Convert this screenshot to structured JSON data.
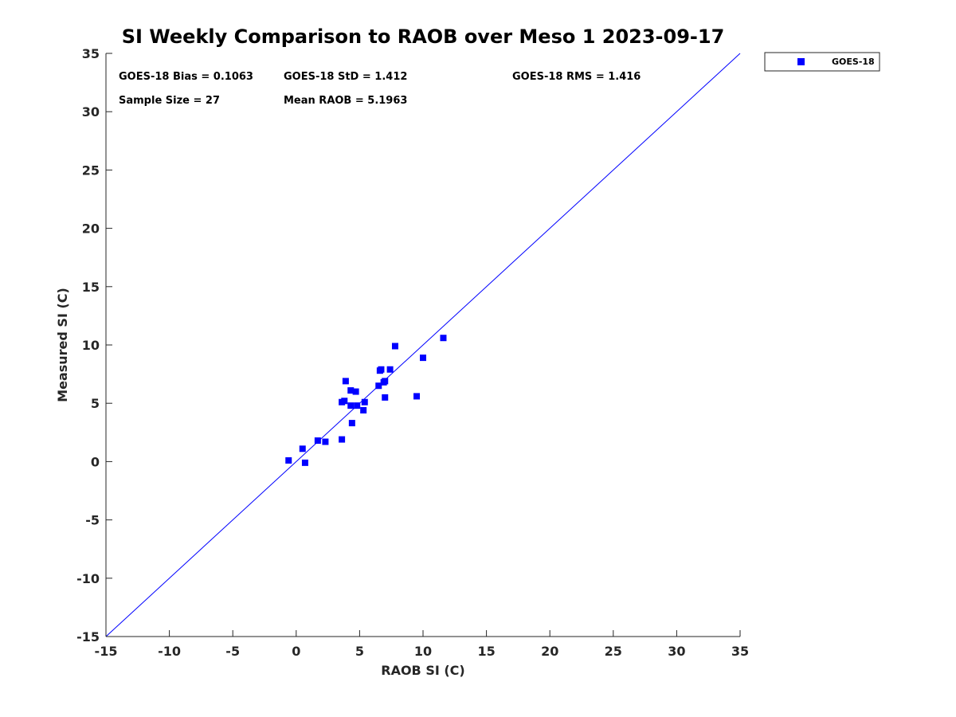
{
  "chart_data": {
    "type": "scatter",
    "title": "SI Weekly Comparison to RAOB over Meso 1 2023-09-17",
    "xlabel": "RAOB SI (C)",
    "ylabel": "Measured SI (C)",
    "xlim": [
      -15,
      35
    ],
    "ylim": [
      -15,
      35
    ],
    "xticks": [
      "-15",
      "-10",
      "-5",
      "0",
      "5",
      "10",
      "15",
      "20",
      "25",
      "30",
      "35"
    ],
    "yticks": [
      "-15",
      "-10",
      "-5",
      "0",
      "5",
      "10",
      "15",
      "20",
      "25",
      "30",
      "35"
    ],
    "grid": false,
    "legend_position": "outside-top-right",
    "reference_line": {
      "name": "1:1 line",
      "from": [
        -15,
        -15
      ],
      "to": [
        35,
        35
      ],
      "color": "#0000ff"
    },
    "stats": {
      "bias": "GOES-18 Bias = 0.1063",
      "std": "GOES-18 StD = 1.412",
      "rms": "GOES-18 RMS = 1.416",
      "sample_size": "Sample Size = 27",
      "mean_raob": "Mean RAOB = 5.1963"
    },
    "series": [
      {
        "name": "GOES-18",
        "marker": "square",
        "color": "#0000ff",
        "points": [
          [
            -0.6,
            0.1
          ],
          [
            0.5,
            1.1
          ],
          [
            0.7,
            -0.1
          ],
          [
            1.7,
            1.8
          ],
          [
            2.3,
            1.7
          ],
          [
            3.6,
            1.9
          ],
          [
            3.6,
            5.1
          ],
          [
            3.8,
            5.2
          ],
          [
            3.9,
            6.9
          ],
          [
            4.3,
            6.1
          ],
          [
            4.3,
            4.8
          ],
          [
            4.4,
            3.3
          ],
          [
            4.7,
            6.0
          ],
          [
            4.8,
            4.8
          ],
          [
            5.3,
            4.4
          ],
          [
            5.4,
            5.1
          ],
          [
            6.5,
            6.5
          ],
          [
            6.6,
            7.8
          ],
          [
            6.7,
            7.9
          ],
          [
            6.9,
            6.8
          ],
          [
            7.0,
            6.9
          ],
          [
            7.0,
            5.5
          ],
          [
            7.4,
            7.9
          ],
          [
            7.8,
            9.9
          ],
          [
            9.5,
            5.6
          ],
          [
            10.0,
            8.9
          ],
          [
            11.6,
            10.6
          ]
        ]
      }
    ]
  }
}
